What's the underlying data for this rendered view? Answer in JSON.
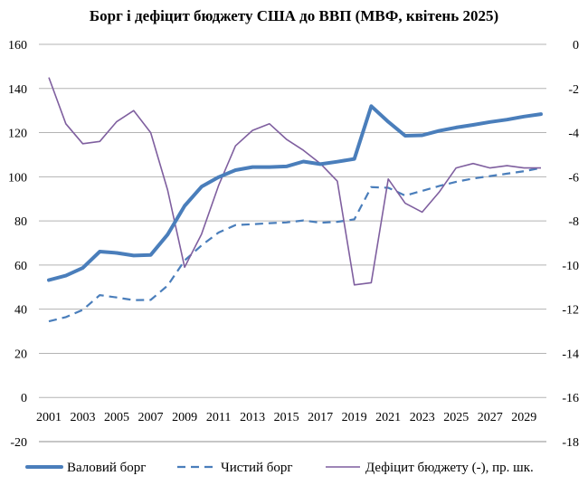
{
  "chart_data": {
    "type": "line",
    "title": "Борг і дефіцит бюджету США до ВВП (МВФ, квітень 2025)",
    "x": [
      2001,
      2002,
      2003,
      2004,
      2005,
      2006,
      2007,
      2008,
      2009,
      2010,
      2011,
      2012,
      2013,
      2014,
      2015,
      2016,
      2017,
      2018,
      2019,
      2020,
      2021,
      2022,
      2023,
      2024,
      2025,
      2026,
      2027,
      2028,
      2029,
      2030
    ],
    "x_tick_labels": [
      "2001",
      "2003",
      "2005",
      "2007",
      "2009",
      "2011",
      "2013",
      "2015",
      "2017",
      "2019",
      "2021",
      "2023",
      "2025",
      "2027",
      "2029"
    ],
    "ylim": [
      -20,
      160
    ],
    "y_ticks": [
      "-20",
      "0",
      "20",
      "40",
      "60",
      "80",
      "100",
      "120",
      "140",
      "160"
    ],
    "y2lim": [
      -18,
      0
    ],
    "y2_ticks": [
      "-18",
      "-16",
      "-14",
      "-12",
      "-10",
      "-8",
      "-6",
      "-4",
      "-2",
      "0"
    ],
    "grid": true,
    "legend_position": "bottom",
    "series": [
      {
        "name": "Валовий борг",
        "axis": "left",
        "style": "solid-thick",
        "color": "#4A7EBB",
        "values": [
          53.2,
          55.2,
          58.7,
          66.1,
          65.5,
          64.3,
          64.6,
          73.8,
          86.8,
          95.5,
          99.8,
          103.0,
          104.4,
          104.4,
          104.7,
          106.9,
          105.7,
          106.8,
          108.1,
          132.0,
          124.9,
          118.6,
          118.8,
          120.8,
          122.3,
          123.5,
          124.8,
          125.9,
          127.3,
          128.4
        ]
      },
      {
        "name": "Чистий борг",
        "axis": "left",
        "style": "dashed",
        "color": "#4A7EBB",
        "values": [
          34.5,
          36.4,
          39.7,
          46.4,
          45.3,
          44.1,
          44.2,
          50.7,
          62.1,
          68.9,
          74.7,
          78.1,
          78.5,
          79.0,
          79.3,
          80.2,
          79.2,
          79.6,
          80.7,
          95.3,
          95.0,
          91.5,
          93.6,
          95.8,
          97.7,
          99.2,
          100.3,
          101.4,
          102.5,
          104.0
        ]
      },
      {
        "name": "Дефіцит бюджету (-), пр. шк.",
        "axis": "right",
        "style": "solid-thin",
        "color": "#7F5F9F",
        "values": [
          -1.5,
          -3.6,
          -4.5,
          -4.4,
          -3.5,
          -3.0,
          -4.0,
          -6.6,
          -10.1,
          -8.6,
          -6.4,
          -4.6,
          -3.9,
          -3.6,
          -4.3,
          -4.8,
          -5.4,
          -6.2,
          -10.9,
          -10.8,
          -6.1,
          -7.2,
          -7.6,
          -6.7,
          -5.6,
          -5.4,
          -5.6,
          -5.5,
          -5.6,
          -5.6
        ]
      }
    ]
  }
}
